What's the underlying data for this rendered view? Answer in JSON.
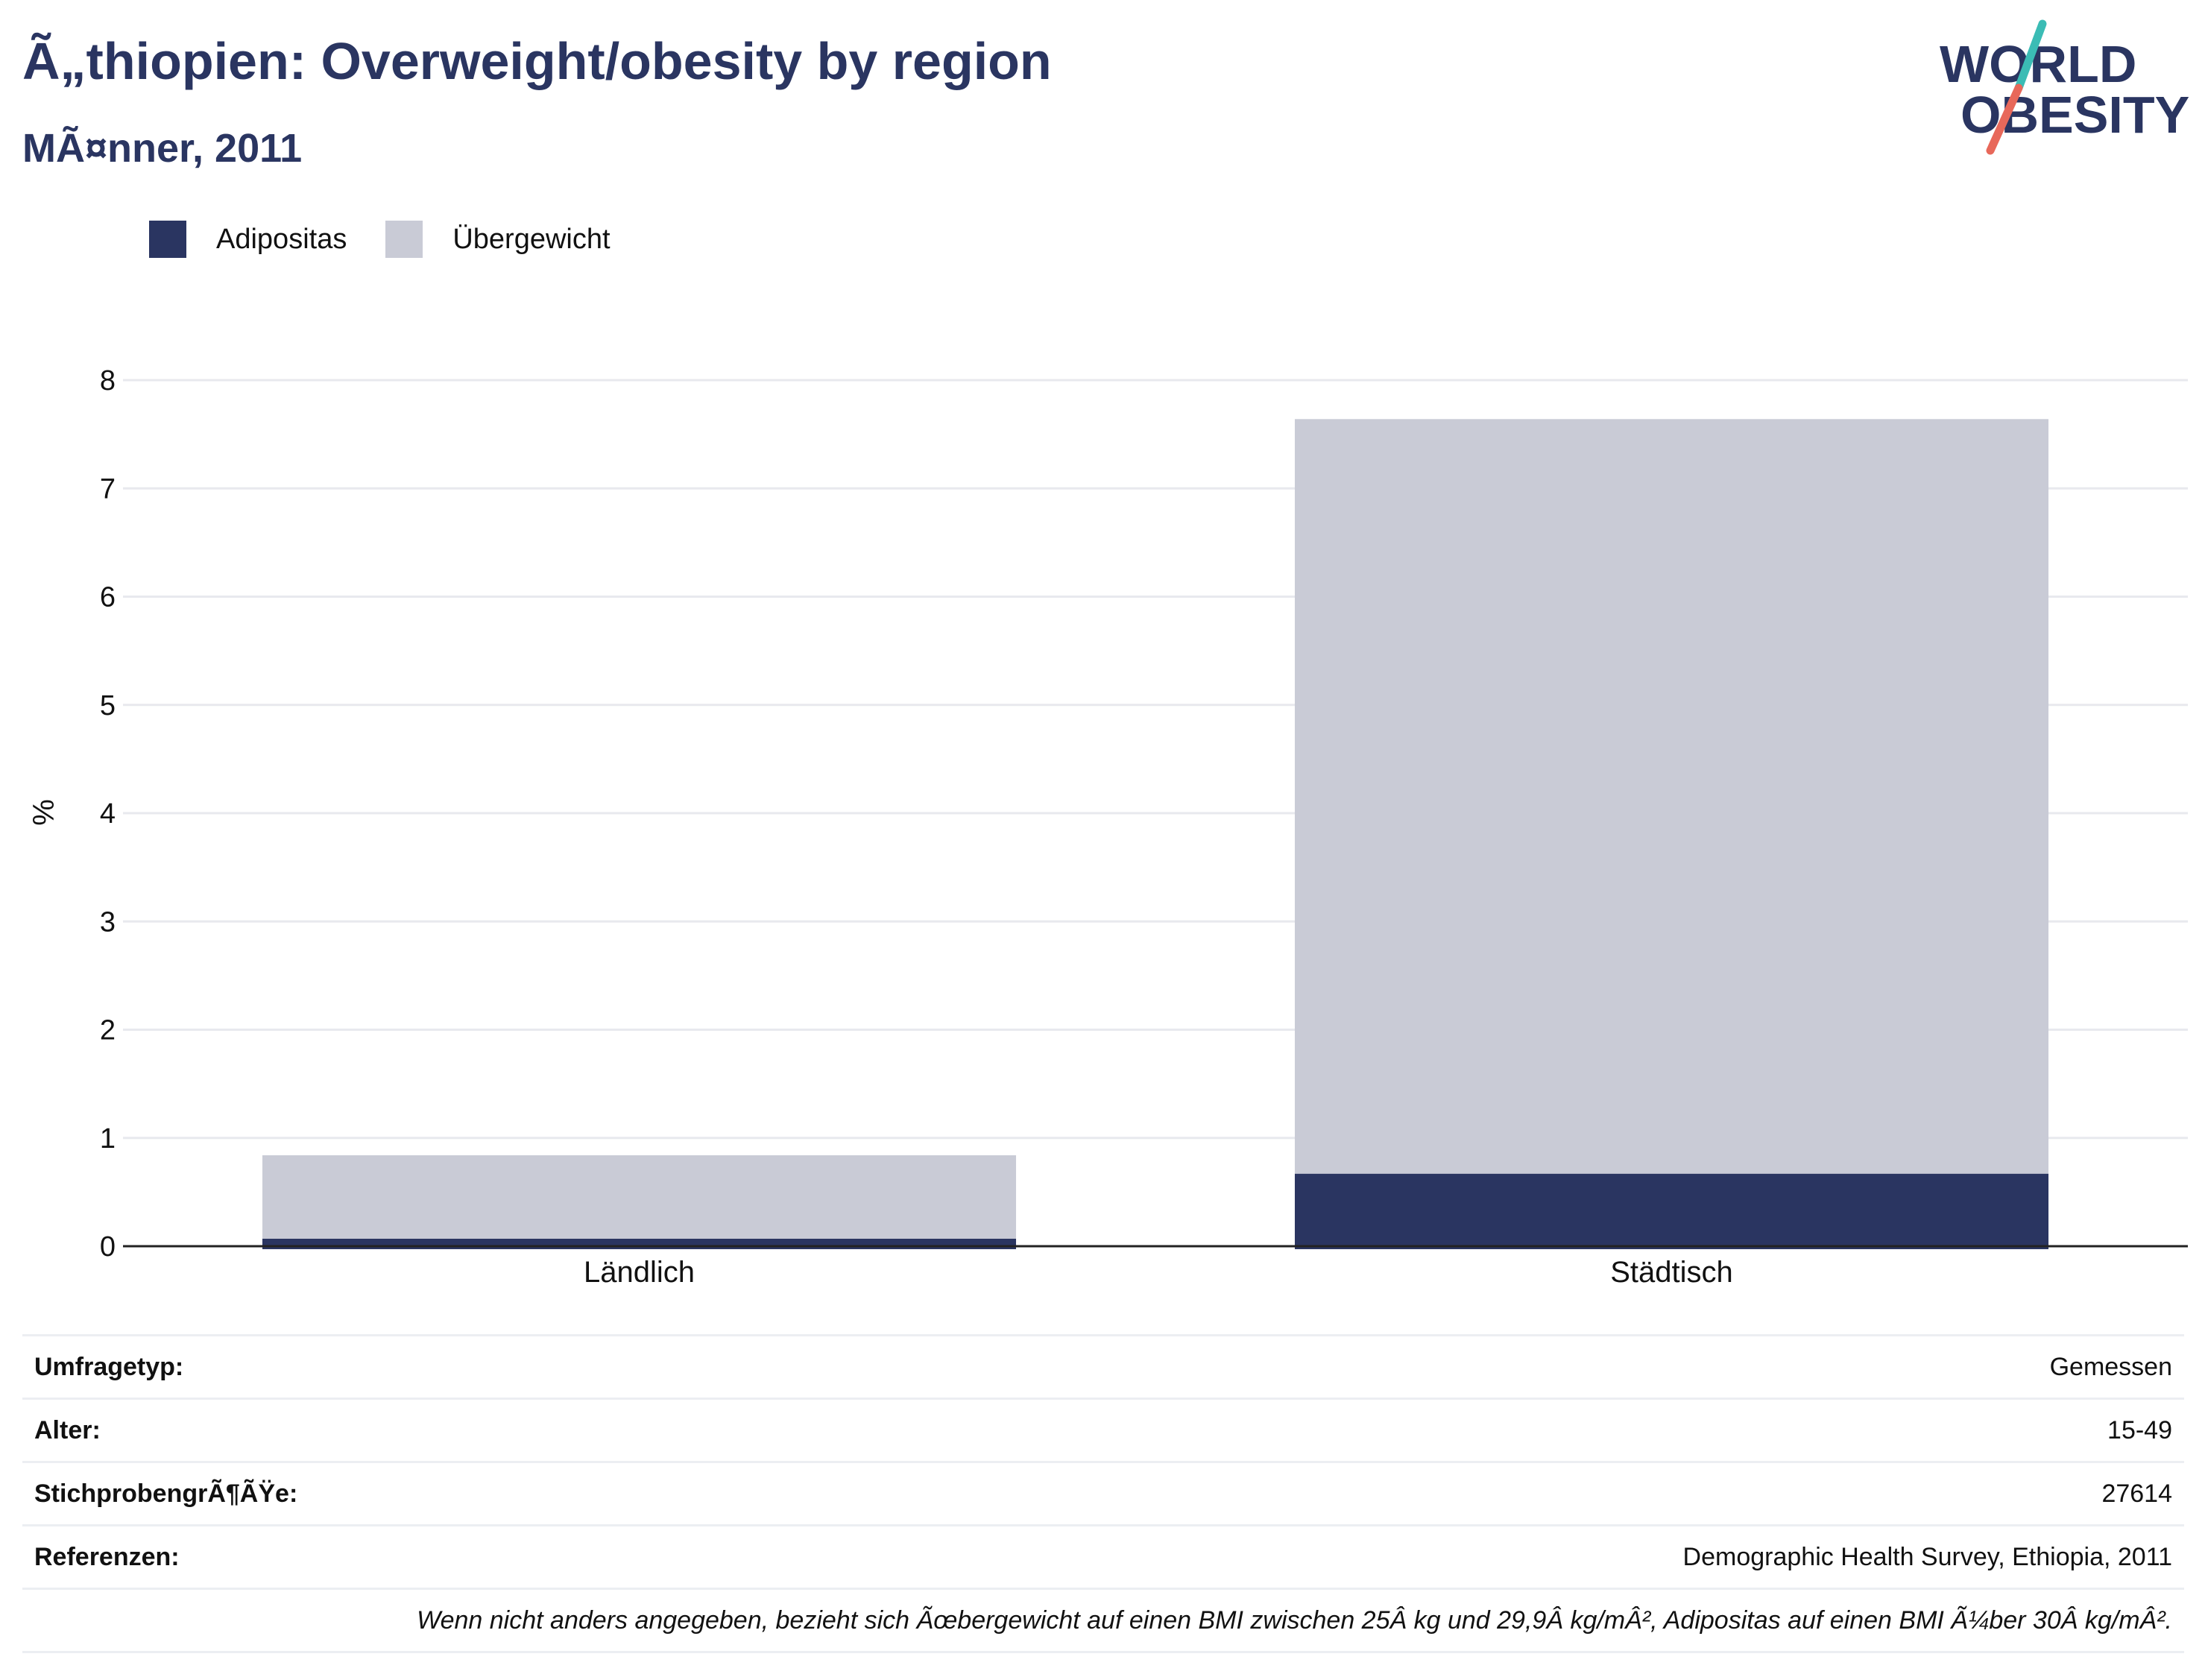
{
  "header": {
    "title": "Ã„thiopien: Overweight/obesity by region",
    "subtitle": "MÃ¤nner, 2011"
  },
  "logo": {
    "line1": "WORLD",
    "line2": "OBESITY"
  },
  "colors": {
    "navy": "#2a3561",
    "light": "#c9cbd6",
    "grid": "#e8e9ee",
    "axis": "#222222",
    "teal": "#3bbcb5",
    "coral": "#e8685a"
  },
  "chart_data": {
    "type": "bar",
    "stacked": true,
    "categories": [
      "Ländlich",
      "Städtisch"
    ],
    "series": [
      {
        "name": "Adipositas",
        "color": "#2a3561",
        "values": [
          0.07,
          0.67
        ]
      },
      {
        "name": "Übergewicht",
        "color": "#c9cbd6",
        "values": [
          0.77,
          6.97
        ]
      }
    ],
    "ylabel": "%",
    "ylim": [
      0,
      8
    ],
    "yticks": [
      0,
      1,
      2,
      3,
      4,
      5,
      6,
      7,
      8
    ],
    "grid": true,
    "legend": "top-left"
  },
  "info": {
    "rows": [
      {
        "label": "Umfragetyp:",
        "value": "Gemessen"
      },
      {
        "label": "Alter:",
        "value": "15-49"
      },
      {
        "label": "StichprobengrÃ¶ÃŸe:",
        "value": "27614"
      },
      {
        "label": "Referenzen:",
        "value": "Demographic Health Survey, Ethiopia, 2011"
      }
    ],
    "note": "Wenn nicht anders angegeben, bezieht sich Ãœbergewicht auf einen BMI zwischen 25Â kg und 29,9Â kg/mÂ², Adipositas auf einen BMI Ã¼ber 30Â kg/mÂ²."
  }
}
